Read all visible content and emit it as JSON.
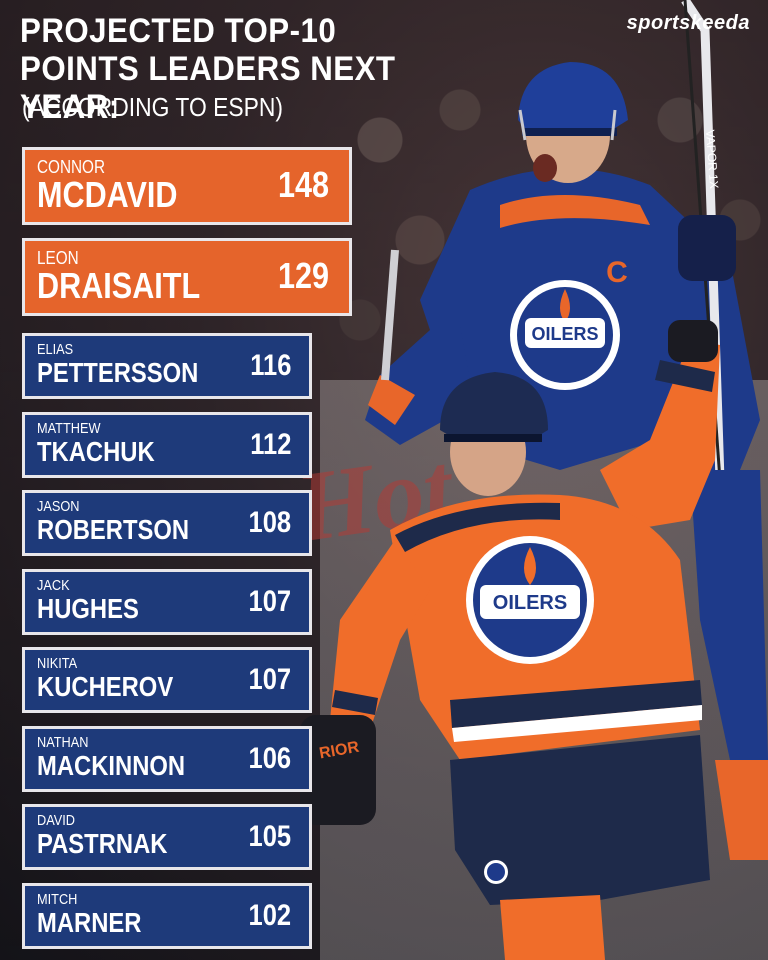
{
  "brand": "sportskeeda",
  "title": "PROJECTED TOP-10 POINTS LEADERS NEXT YEAR:",
  "subtitle": "(ACCORDING TO ESPN)",
  "chart_data": {
    "type": "table",
    "columns": [
      "first",
      "last",
      "points"
    ],
    "rows": [
      {
        "first": "CONNOR",
        "last": "MCDAVID",
        "points": 148
      },
      {
        "first": "LEON",
        "last": "DRAISAITL",
        "points": 129
      },
      {
        "first": "ELIAS",
        "last": "PETTERSSON",
        "points": 116
      },
      {
        "first": "MATTHEW",
        "last": "TKACHUK",
        "points": 112
      },
      {
        "first": "JASON",
        "last": "ROBERTSON",
        "points": 108
      },
      {
        "first": "JACK",
        "last": "HUGHES",
        "points": 107
      },
      {
        "first": "NIKITA",
        "last": "KUCHEROV",
        "points": 107
      },
      {
        "first": "NATHAN",
        "last": "MACKINNON",
        "points": 106
      },
      {
        "first": "DAVID",
        "last": "PASTRNAK",
        "points": 105
      },
      {
        "first": "MITCH",
        "last": "MARNER",
        "points": 102
      }
    ]
  },
  "jersey": {
    "logo_text": "OILERS",
    "captain_letter": "C",
    "glove_text": "RIOR",
    "stick_text": "VAPOR 1X"
  },
  "colors": {
    "orange": "#e5642b",
    "navy": "#1e3a7a",
    "border": "#e8e6ea"
  }
}
